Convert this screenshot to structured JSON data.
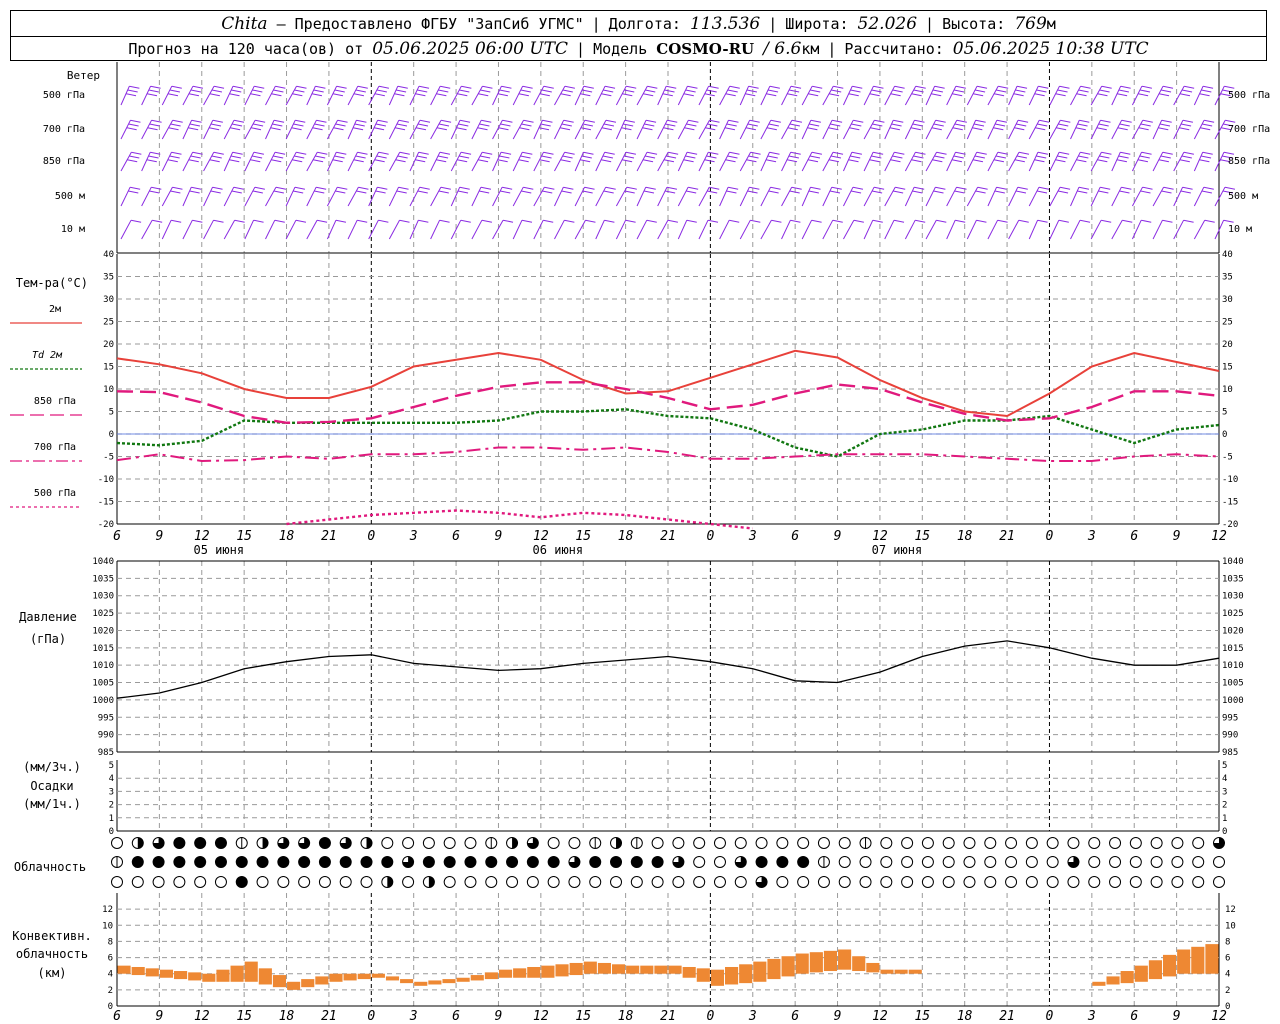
{
  "header": {
    "station": "Chita",
    "provider": "— Предоставлено ФГБУ \"ЗапСиб УГМС\"",
    "lon_label": "Долгота:",
    "lon": "113.536",
    "lat_label": "Широта:",
    "lat": "52.026",
    "alt_label": "Высота:",
    "alt": "769",
    "alt_unit": "м",
    "forecast_label": "Прогноз на 120 часа(ов) от",
    "forecast_from": "05.06.2025 06:00 UTC",
    "model_label": "Модель",
    "model": "COSMO-RU",
    "resolution": "/ 6.6",
    "resolution_unit": "км",
    "calc_label": "Рассчитано:",
    "calc_time": "05.06.2025 10:38 UTC"
  },
  "panels": {
    "wind": {
      "title": "Ветер",
      "levels": [
        "500 гПа",
        "700 гПа",
        "850 гПа",
        "500 м",
        "10  м"
      ],
      "color": "#8a2be2"
    },
    "temp": {
      "title": "Тем-ра(°С)",
      "legend": [
        {
          "label": "2м",
          "color": "#e8413a",
          "dash": ""
        },
        {
          "label": "Td  2м",
          "color": "#117711",
          "dash": "3,2"
        },
        {
          "label": "850 гПа",
          "color": "#e0197d",
          "dash": "14,6"
        },
        {
          "label": "700 гПа",
          "color": "#e0197d",
          "dash": "12,4,3,4"
        },
        {
          "label": "500 гПа",
          "color": "#e0197d",
          "dash": "3,3"
        }
      ]
    },
    "pressure": {
      "title": "Давление",
      "unit": "(гПа)"
    },
    "precip": {
      "unit1": "(мм/3ч.)",
      "title": "Осадки",
      "unit2": "(мм/1ч.)"
    },
    "cloud": {
      "title": "Облачность"
    },
    "conv": {
      "title1": "Конвективн.",
      "title2": "облачность",
      "unit": "(км)",
      "color": "#ee8833"
    }
  },
  "chart_data": {
    "type": "line",
    "x_hours": [
      6,
      9,
      12,
      15,
      18,
      21,
      0,
      3,
      6,
      9,
      12,
      15,
      18,
      21,
      0,
      3,
      6,
      9,
      12,
      15,
      18,
      21,
      0,
      3,
      6,
      9,
      12
    ],
    "x_tick_labels": [
      "6",
      "9",
      "12",
      "15",
      "18",
      "21",
      "0",
      "3",
      "6",
      "9",
      "12",
      "15",
      "18",
      "21",
      "0",
      "3",
      "6",
      "9",
      "12",
      "15",
      "18",
      "21",
      "0",
      "3",
      "6",
      "9",
      "12"
    ],
    "date_labels": [
      "05 июня",
      "06 июня",
      "07 июня"
    ],
    "temp_ylim": [
      -20,
      40
    ],
    "temp_ticks": [
      "40",
      "35",
      "30",
      "25",
      "20",
      "15",
      "10",
      "5",
      "0",
      "-5",
      "-10",
      "-15",
      "-20"
    ],
    "pressure_ylim": [
      985,
      1040
    ],
    "pressure_ticks": [
      "1040",
      "1035",
      "1030",
      "1025",
      "1020",
      "1015",
      "1010",
      "1005",
      "1000",
      "995",
      "990",
      "985"
    ],
    "precip_ticks": [
      "5",
      "4",
      "3",
      "2",
      "1",
      "0"
    ],
    "conv_ticks": [
      "12",
      "10",
      "8",
      "6",
      "4",
      "2",
      "0"
    ],
    "temp_2m": [
      16.8,
      15.5,
      13.5,
      10,
      8,
      8,
      10.5,
      15,
      16.5,
      18,
      16.5,
      12,
      9,
      9.5,
      12.5,
      15.5,
      18.5,
      17,
      12,
      8,
      5,
      4,
      9,
      15,
      18,
      16,
      14
    ],
    "td_2m": [
      -2,
      -2.5,
      -1.5,
      3,
      2.5,
      2.5,
      2.5,
      2.5,
      2.5,
      3,
      5,
      5,
      5.5,
      4,
      3.5,
      1,
      -3,
      -5,
      0,
      1,
      3,
      3,
      4,
      1,
      -2,
      1,
      2
    ],
    "t_850": [
      9.5,
      9.3,
      7,
      4,
      2.5,
      2.7,
      3.5,
      6,
      8.5,
      10.5,
      11.5,
      11.5,
      10,
      8,
      5.5,
      6.5,
      9,
      11,
      10,
      7,
      4.5,
      3,
      3.5,
      6,
      9.5,
      9.5,
      8.5
    ],
    "t_700": [
      -5.8,
      -4.5,
      -6,
      -5.8,
      -5,
      -5.5,
      -4.5,
      -4.5,
      -4,
      -3,
      -3,
      -3.5,
      -3,
      -4,
      -5.5,
      -5.5,
      -5,
      -4.5,
      -4.5,
      -4.5,
      -5,
      -5.5,
      -6,
      -6,
      -5,
      -4.5,
      -5
    ],
    "t_500": [
      null,
      null,
      null,
      null,
      -20,
      -19,
      -18,
      -17.5,
      -17,
      -17.5,
      -18.5,
      -17.5,
      -18,
      -19,
      -20,
      -21,
      null,
      null,
      null,
      null,
      null,
      null,
      null,
      null,
      null,
      null,
      null
    ],
    "pressure": [
      1000.5,
      1002,
      1005,
      1009,
      1011,
      1012.5,
      1013,
      1010.5,
      1009.5,
      1008.5,
      1009,
      1010.5,
      1011.5,
      1012.5,
      1011,
      1009,
      1005.5,
      1005,
      1008,
      1012.5,
      1015.5,
      1017,
      1015,
      1012,
      1010,
      1010,
      1012
    ],
    "precip": [
      0,
      0,
      0,
      0,
      0,
      0,
      0,
      0,
      0,
      0,
      0,
      0,
      0,
      0,
      0,
      0,
      0,
      0,
      0,
      0,
      0,
      0,
      0,
      0,
      0,
      0,
      0
    ],
    "conv_bottom": [
      4,
      3.5,
      3,
      3,
      2,
      3,
      3.5,
      2.5,
      3,
      3.5,
      3.5,
      4,
      4,
      4,
      2.5,
      3,
      4,
      4.5,
      4,
      null,
      null,
      null,
      null,
      2.5,
      3,
      4,
      4
    ],
    "conv_top": [
      5,
      4.5,
      4,
      5.5,
      3,
      4,
      4,
      3,
      3.5,
      4.5,
      5,
      5.5,
      5,
      5,
      4.5,
      5.5,
      6.5,
      7,
      4.5,
      null,
      null,
      null,
      null,
      3,
      5,
      7,
      8
    ]
  }
}
